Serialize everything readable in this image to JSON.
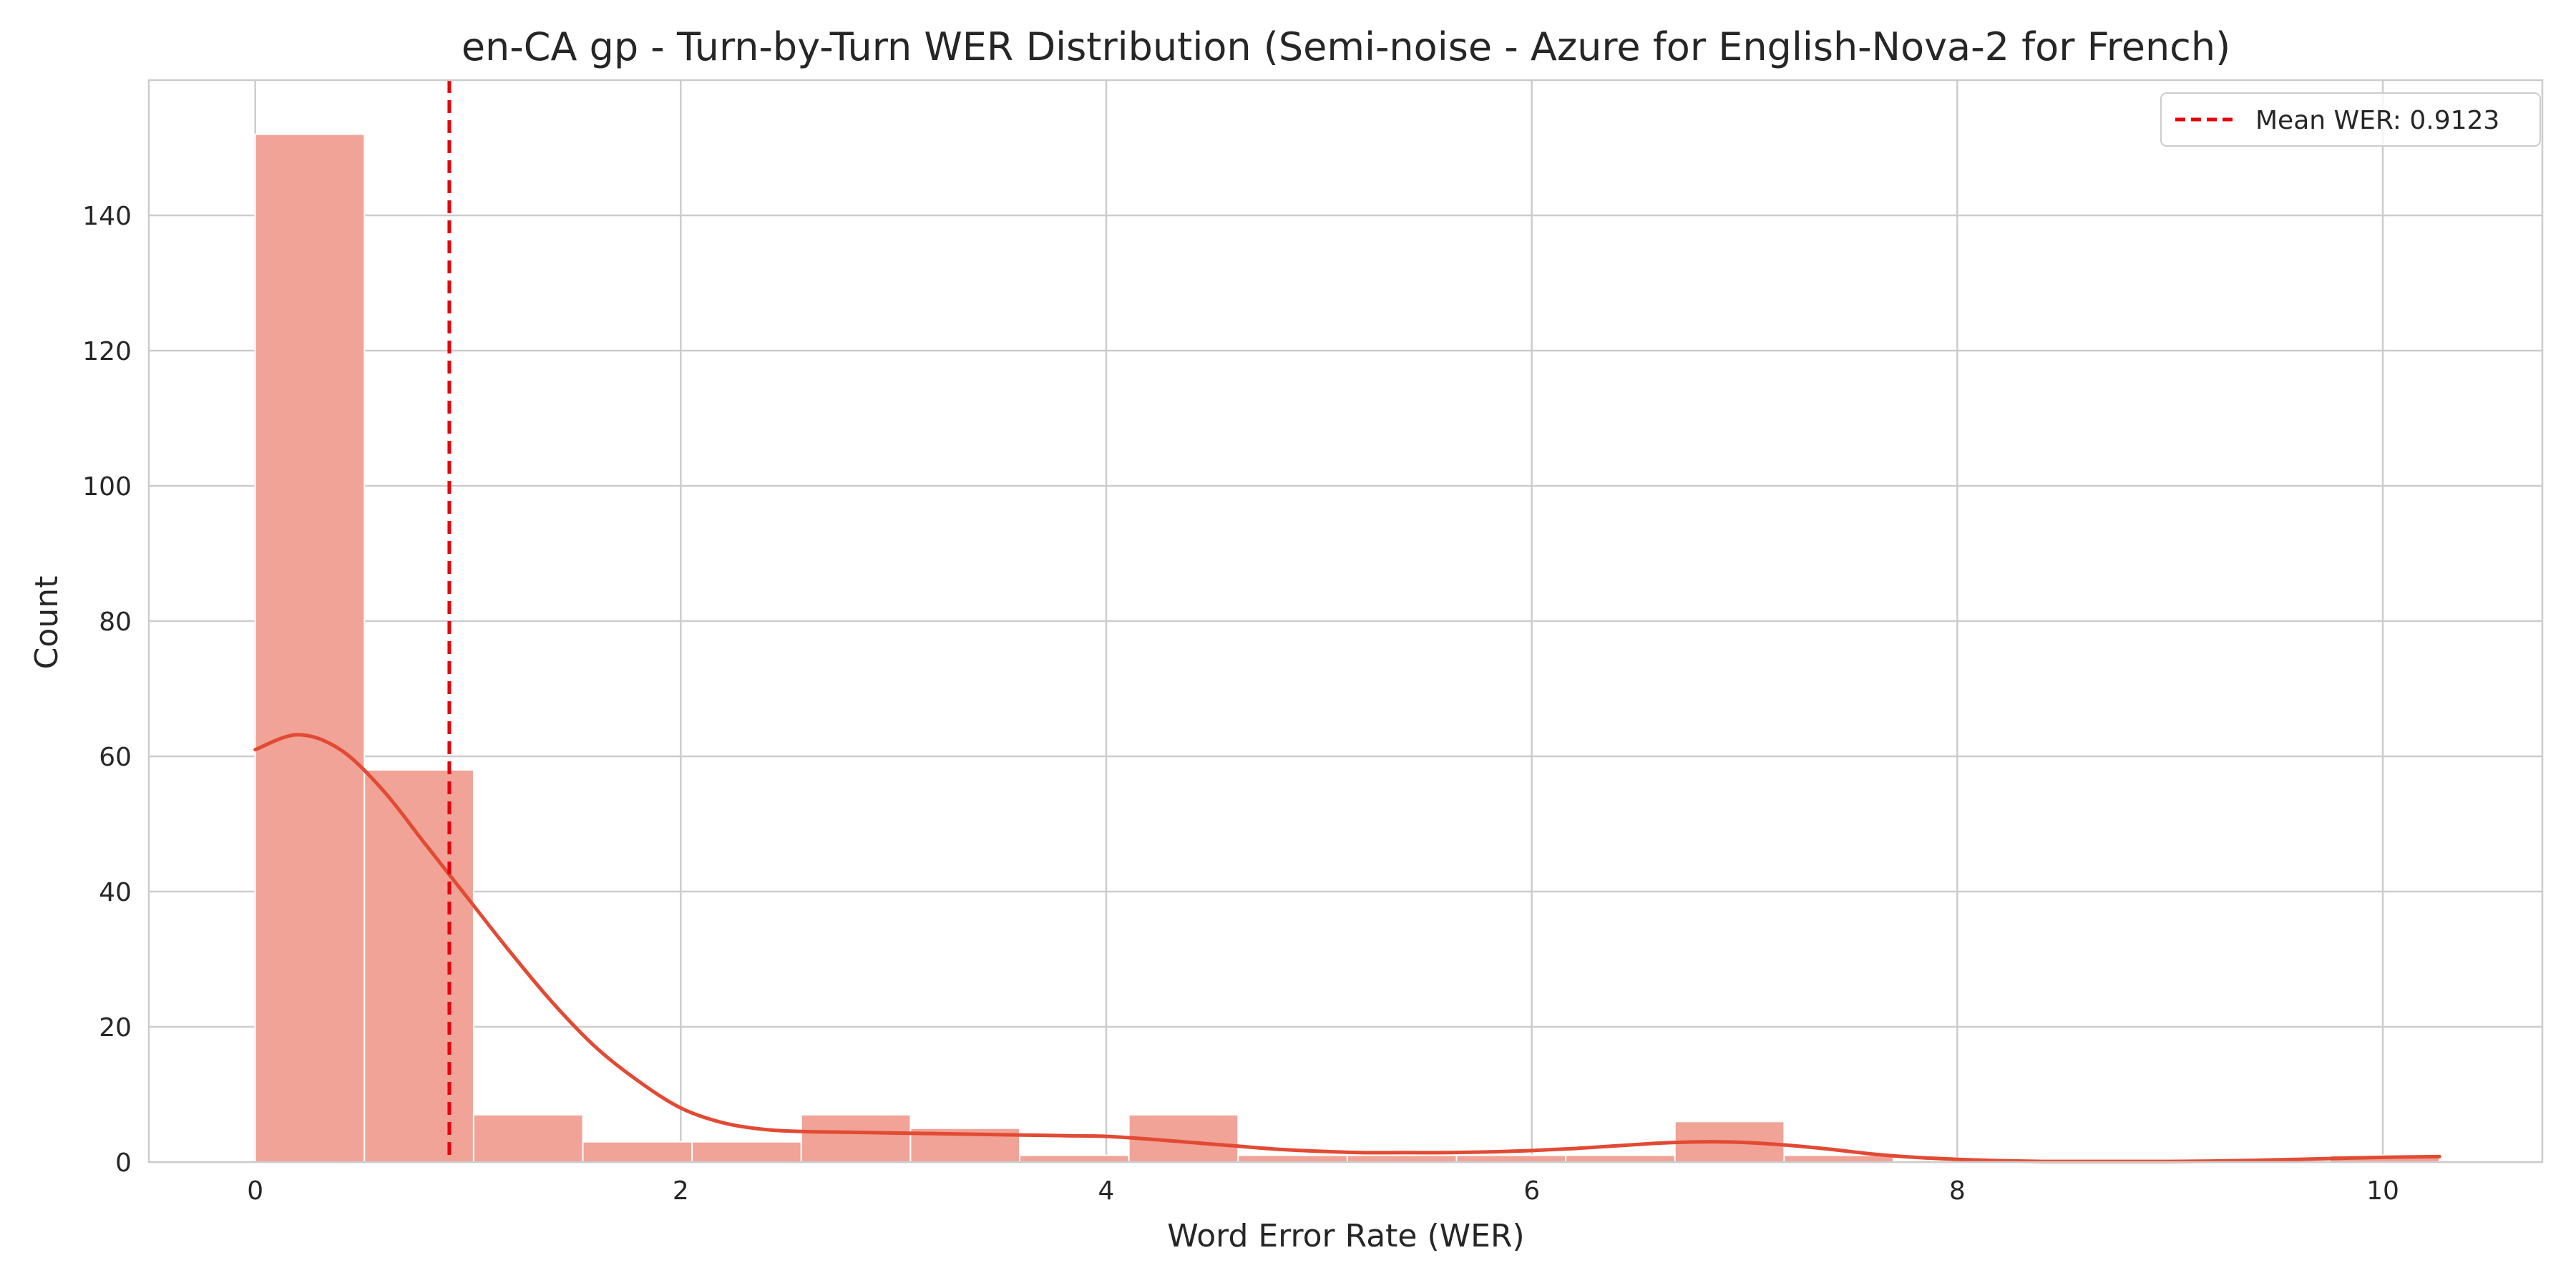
{
  "chart_data": {
    "type": "bar",
    "title": "en-CA gp - Turn-by-Turn WER Distribution (Semi-noise - Azure for English-Nova-2 for French)",
    "xlabel": "Word Error Rate (WER)",
    "ylabel": "Count",
    "xlim": [
      -0.5,
      10.75
    ],
    "ylim": [
      0,
      160
    ],
    "xticks": [
      0,
      2,
      4,
      6,
      8,
      10
    ],
    "yticks": [
      0,
      20,
      40,
      60,
      80,
      100,
      120,
      140
    ],
    "grid": true,
    "legend_position": "top-right",
    "bin_width": 0.5133,
    "bins": [
      {
        "x0": 0.0,
        "x1": 0.5133,
        "count": 152
      },
      {
        "x0": 0.5133,
        "x1": 1.0266,
        "count": 58
      },
      {
        "x0": 1.0266,
        "x1": 1.5399,
        "count": 7
      },
      {
        "x0": 1.5399,
        "x1": 2.0532,
        "count": 3
      },
      {
        "x0": 2.0532,
        "x1": 2.5665,
        "count": 3
      },
      {
        "x0": 2.5665,
        "x1": 3.0798,
        "count": 7
      },
      {
        "x0": 3.0798,
        "x1": 3.5931,
        "count": 5
      },
      {
        "x0": 3.5931,
        "x1": 4.1064,
        "count": 1
      },
      {
        "x0": 4.1064,
        "x1": 4.6197,
        "count": 7
      },
      {
        "x0": 4.6197,
        "x1": 5.133,
        "count": 1
      },
      {
        "x0": 5.133,
        "x1": 5.6463,
        "count": 1
      },
      {
        "x0": 5.6463,
        "x1": 6.1596,
        "count": 1
      },
      {
        "x0": 6.1596,
        "x1": 6.6729,
        "count": 1
      },
      {
        "x0": 6.6729,
        "x1": 7.1862,
        "count": 6
      },
      {
        "x0": 7.1862,
        "x1": 7.6995,
        "count": 1
      },
      {
        "x0": 7.6995,
        "x1": 8.2128,
        "count": 0
      },
      {
        "x0": 8.2128,
        "x1": 8.7261,
        "count": 0
      },
      {
        "x0": 8.7261,
        "x1": 9.2394,
        "count": 0
      },
      {
        "x0": 9.2394,
        "x1": 9.7527,
        "count": 0
      },
      {
        "x0": 9.7527,
        "x1": 10.266,
        "count": 1
      }
    ],
    "kde": {
      "x": [
        0.0,
        0.2,
        0.4,
        0.6,
        0.8,
        1.0,
        1.2,
        1.4,
        1.6,
        1.8,
        2.0,
        2.2,
        2.4,
        2.6,
        2.8,
        3.0,
        3.2,
        3.4,
        3.6,
        3.8,
        4.0,
        4.2,
        4.4,
        4.6,
        4.8,
        5.0,
        5.2,
        5.4,
        5.6,
        5.8,
        6.0,
        6.2,
        6.4,
        6.6,
        6.8,
        7.0,
        7.2,
        7.4,
        7.6,
        7.8,
        8.0,
        8.2,
        8.4,
        8.6,
        8.8,
        9.0,
        9.2,
        9.4,
        9.6,
        9.8,
        10.0,
        10.266
      ],
      "y": [
        61,
        63.2,
        61,
        55,
        47,
        39,
        31,
        23.5,
        17,
        12,
        8,
        5.8,
        4.8,
        4.5,
        4.4,
        4.3,
        4.2,
        4.1,
        4,
        3.9,
        3.8,
        3.4,
        2.9,
        2.4,
        1.9,
        1.6,
        1.4,
        1.4,
        1.4,
        1.5,
        1.7,
        2.0,
        2.4,
        2.8,
        3.0,
        2.9,
        2.5,
        1.9,
        1.2,
        0.7,
        0.4,
        0.2,
        0.1,
        0.1,
        0.1,
        0.1,
        0.15,
        0.25,
        0.4,
        0.55,
        0.7,
        0.8
      ]
    },
    "mean_line": {
      "value": 0.9123,
      "label": "Mean WER: 0.9123"
    },
    "colors": {
      "bar_fill": "#f0a396",
      "bar_edge": "#ffffff",
      "kde_line": "#e24a33",
      "mean_line": "#e8000b",
      "grid": "#cccccc",
      "axes_edge": "#cccccc",
      "text": "#262626"
    }
  }
}
